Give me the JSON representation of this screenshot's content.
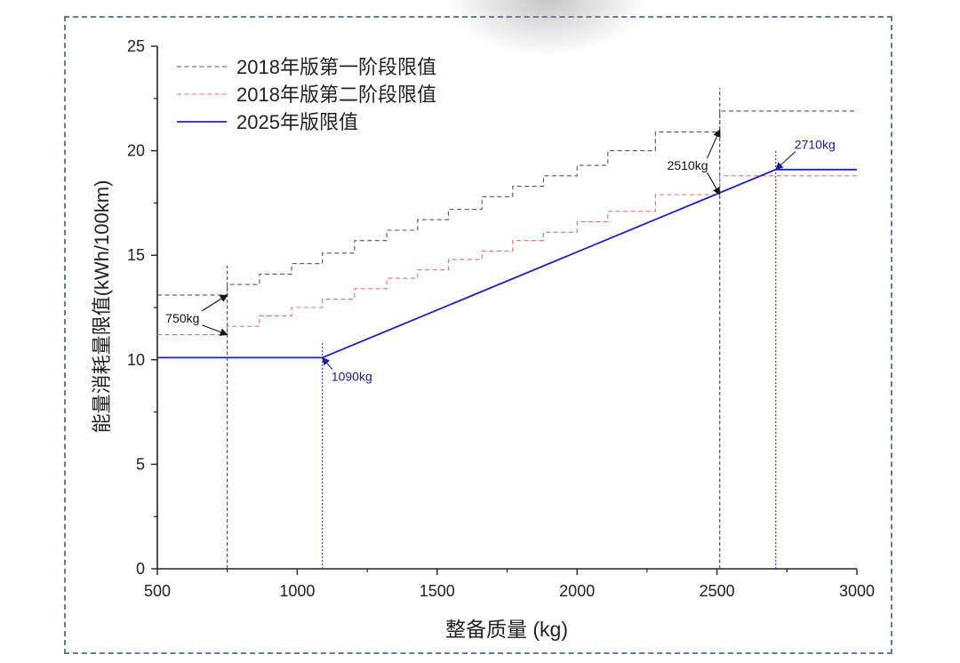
{
  "chart_data": {
    "type": "line",
    "title": "",
    "xlabel": "整备质量 (kg)",
    "ylabel": "能量消耗量限值(kWh/100km)",
    "xlim": [
      500,
      3000
    ],
    "ylim": [
      0,
      25
    ],
    "x_ticks": [
      500,
      1000,
      1500,
      2000,
      2500,
      3000
    ],
    "y_ticks": [
      0,
      5,
      10,
      15,
      20,
      25
    ],
    "grid": false,
    "legend_position": "top-left",
    "series": [
      {
        "name": "2018年版第一阶段限值",
        "style": "dashed",
        "color": "#555555",
        "x": [
          500,
          750,
          750,
          865,
          865,
          980,
          980,
          1090,
          1090,
          1205,
          1205,
          1320,
          1320,
          1430,
          1430,
          1540,
          1540,
          1660,
          1660,
          1770,
          1770,
          1880,
          1880,
          2000,
          2000,
          2110,
          2110,
          2280,
          2280,
          2510,
          2510,
          3000
        ],
        "y": [
          13.1,
          13.1,
          13.6,
          13.6,
          14.1,
          14.1,
          14.6,
          14.6,
          15.1,
          15.1,
          15.7,
          15.7,
          16.2,
          16.2,
          16.7,
          16.7,
          17.2,
          17.2,
          17.8,
          17.8,
          18.3,
          18.3,
          18.8,
          18.8,
          19.3,
          19.3,
          20.0,
          20.0,
          20.9,
          20.9,
          21.9,
          21.9
        ]
      },
      {
        "name": "2018年版第二阶段限值",
        "style": "dashed",
        "color": "#e07070",
        "x": [
          500,
          750,
          750,
          865,
          865,
          980,
          980,
          1090,
          1090,
          1205,
          1205,
          1320,
          1320,
          1430,
          1430,
          1540,
          1540,
          1660,
          1660,
          1770,
          1770,
          1880,
          1880,
          2000,
          2000,
          2110,
          2110,
          2280,
          2280,
          2510,
          2510,
          3000
        ],
        "y": [
          11.2,
          11.2,
          11.6,
          11.6,
          12.1,
          12.1,
          12.5,
          12.5,
          12.9,
          12.9,
          13.4,
          13.4,
          13.9,
          13.9,
          14.3,
          14.3,
          14.8,
          14.8,
          15.2,
          15.2,
          15.7,
          15.7,
          16.1,
          16.1,
          16.6,
          16.6,
          17.1,
          17.1,
          17.9,
          17.9,
          18.8,
          18.8
        ]
      },
      {
        "name": "2025年版限值",
        "style": "solid",
        "color": "#2020c0",
        "x": [
          500,
          1090,
          2710,
          3000
        ],
        "y": [
          10.1,
          10.1,
          19.1,
          19.1
        ]
      }
    ],
    "reference_lines": [
      {
        "x": 750,
        "y_top": 14.5,
        "style": "dashed",
        "color": "#333333"
      },
      {
        "x": 1090,
        "y_top": 10.9,
        "style": "dotted",
        "color": "#2020c0"
      },
      {
        "x": 2510,
        "y_top": 23.0,
        "style": "dashed",
        "color": "#333333"
      },
      {
        "x": 2710,
        "y_top": 20.0,
        "style": "dotted",
        "color": "#2020c0"
      }
    ],
    "annotations": [
      {
        "text": "750kg",
        "color": "#111111",
        "label_x": 590,
        "label_y": 12.0,
        "arrows": [
          {
            "x": 750,
            "y": 13.1
          },
          {
            "x": 750,
            "y": 11.2
          }
        ]
      },
      {
        "text": "1090kg",
        "color": "#1a1aa8",
        "label_x": 1195,
        "label_y": 9.2,
        "arrows": [
          {
            "x": 1090,
            "y": 10.1
          }
        ]
      },
      {
        "text": "2510kg",
        "color": "#111111",
        "label_x": 2395,
        "label_y": 19.3,
        "arrows": [
          {
            "x": 2510,
            "y": 21.0
          },
          {
            "x": 2510,
            "y": 17.9
          }
        ]
      },
      {
        "text": "2710kg",
        "color": "#1a1aa8",
        "label_x": 2850,
        "label_y": 20.3,
        "arrows": [
          {
            "x": 2710,
            "y": 19.1
          }
        ]
      }
    ]
  }
}
